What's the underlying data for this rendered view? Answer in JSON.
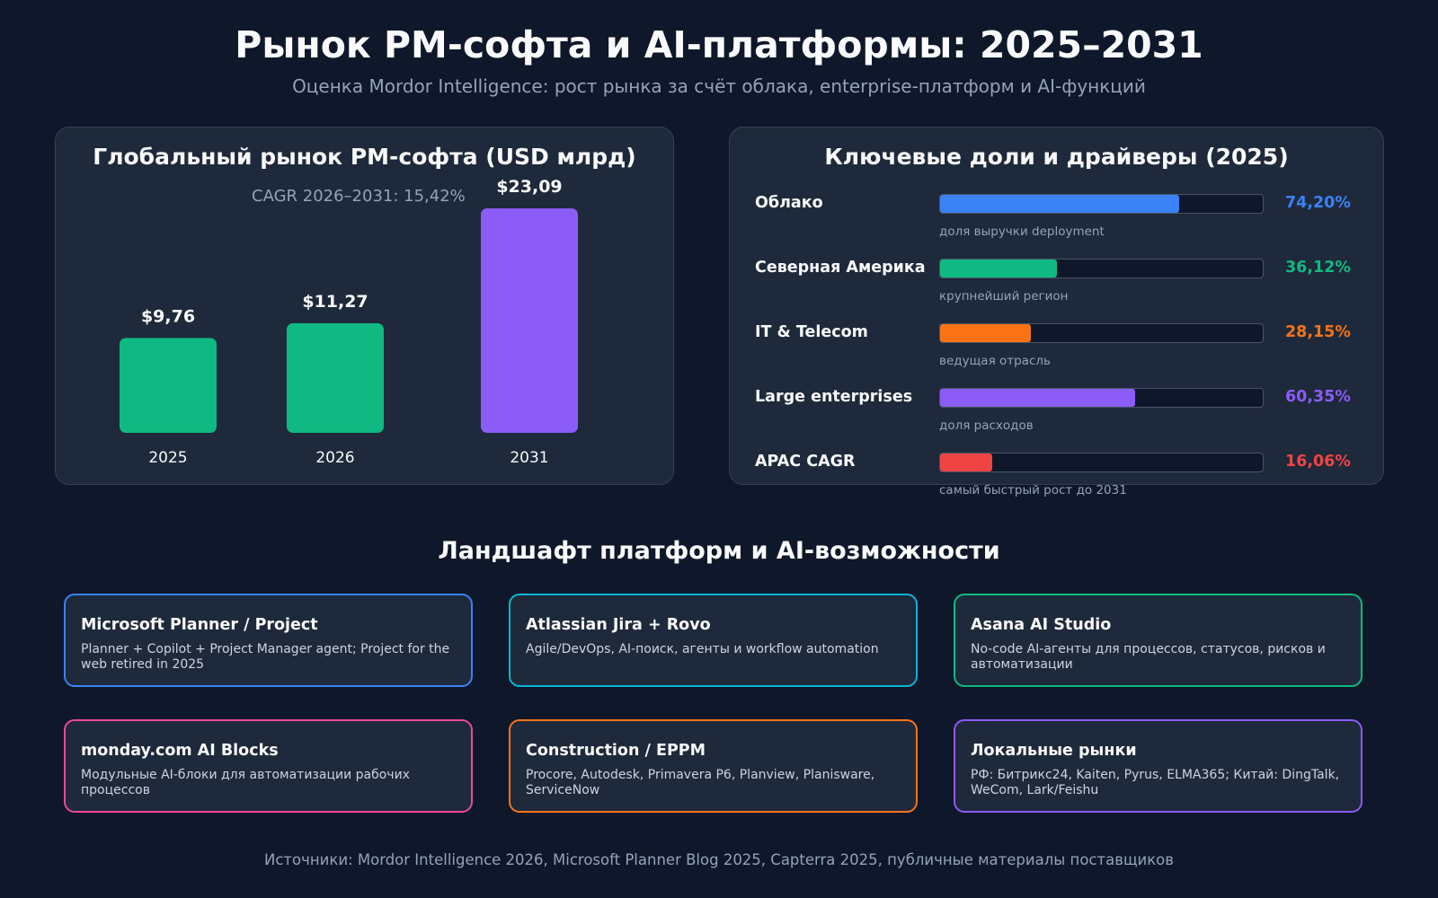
{
  "title": "Рынок PM-софта и AI-платформы: 2025–2031",
  "subtitle": "Оценка Mordor Intelligence: рост рынка за счёт облака, enterprise-платформ и AI-функций",
  "colors": {
    "background": "#0f172a",
    "panel": "#1e293b",
    "green": "#10b981",
    "purple": "#8b5cf6",
    "blue": "#3b82f6",
    "orange": "#f97316",
    "red": "#ef4444",
    "cyan": "#06b6d4",
    "pink": "#ec4899"
  },
  "chart_data": [
    {
      "type": "bar",
      "title": "Глобальный рынок PM-софта (USD млрд)",
      "annotation": "CAGR 2026–2031: 15,42%",
      "categories": [
        "2025",
        "2026",
        "2031"
      ],
      "values": [
        9.76,
        11.27,
        23.09
      ],
      "value_labels": [
        "$9,76",
        "$11,27",
        "$23,09"
      ],
      "bar_colors": [
        "#10b981",
        "#10b981",
        "#8b5cf6"
      ],
      "ylim": [
        0,
        23.09
      ],
      "grid": false
    },
    {
      "type": "bar",
      "orientation": "horizontal",
      "title": "Ключевые доли и драйверы (2025)",
      "xlim": [
        0,
        100
      ],
      "items": [
        {
          "label": "Облако",
          "value": 74.2,
          "value_label": "74,20%",
          "note": "доля выручки deployment",
          "color": "#3b82f6"
        },
        {
          "label": "Северная Америка",
          "value": 36.12,
          "value_label": "36,12%",
          "note": "крупнейший регион",
          "color": "#10b981"
        },
        {
          "label": "IT & Telecom",
          "value": 28.15,
          "value_label": "28,15%",
          "note": "ведущая отрасль",
          "color": "#f97316"
        },
        {
          "label": "Large enterprises",
          "value": 60.35,
          "value_label": "60,35%",
          "note": "доля расходов",
          "color": "#8b5cf6"
        },
        {
          "label": "APAC CAGR",
          "value": 16.06,
          "value_label": "16,06%",
          "note": "самый быстрый рост до 2031",
          "color": "#ef4444"
        }
      ]
    }
  ],
  "landscape": {
    "title": "Ландшафт платформ и AI-возможности",
    "cards": [
      {
        "title": "Microsoft Planner / Project",
        "desc": "Planner + Copilot + Project Manager agent; Project for the web retired in 2025",
        "color": "#3b82f6"
      },
      {
        "title": "Atlassian Jira + Rovo",
        "desc": "Agile/DevOps, AI-поиск, агенты и workflow automation",
        "color": "#06b6d4"
      },
      {
        "title": "Asana AI Studio",
        "desc": "No-code AI-агенты для процессов, статусов, рисков и автоматизации",
        "color": "#10b981"
      },
      {
        "title": "monday.com AI Blocks",
        "desc": "Модульные AI-блоки для автоматизации рабочих процессов",
        "color": "#ec4899"
      },
      {
        "title": "Construction / EPPM",
        "desc": "Procore, Autodesk, Primavera P6, Planview, Planisware, ServiceNow",
        "color": "#f97316"
      },
      {
        "title": "Локальные рынки",
        "desc": "РФ: Битрикс24, Kaiten, Pyrus, ELMA365; Китай: DingTalk, WeCom, Lark/Feishu",
        "color": "#8b5cf6"
      }
    ]
  },
  "sources": "Источники: Mordor Intelligence 2026, Microsoft Planner Blog 2025, Capterra 2025, публичные материалы поставщиков"
}
